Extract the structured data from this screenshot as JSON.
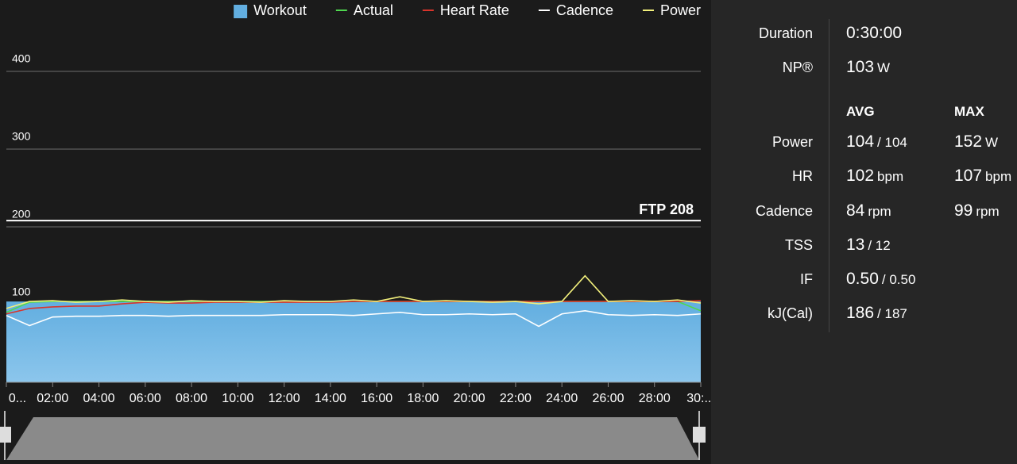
{
  "chart_data": {
    "type": "line",
    "x": [
      0,
      1,
      2,
      3,
      4,
      5,
      6,
      7,
      8,
      9,
      10,
      11,
      12,
      13,
      14,
      15,
      16,
      17,
      18,
      19,
      20,
      21,
      22,
      23,
      24,
      25,
      26,
      27,
      28,
      29,
      30
    ],
    "series": [
      {
        "name": "Workout",
        "color": "#62aee0",
        "style": "area",
        "values": [
          104,
          104,
          104,
          104,
          104,
          104,
          104,
          104,
          104,
          104,
          104,
          104,
          104,
          104,
          104,
          104,
          104,
          104,
          104,
          104,
          104,
          104,
          104,
          104,
          104,
          104,
          104,
          104,
          104,
          104,
          104
        ]
      },
      {
        "name": "Actual",
        "color": "#4fd84f",
        "style": "line",
        "values": [
          90,
          103,
          104,
          104,
          104,
          104,
          104,
          104,
          104,
          104,
          104,
          104,
          104,
          104,
          104,
          104,
          104,
          104,
          104,
          104,
          104,
          104,
          104,
          104,
          104,
          104,
          104,
          104,
          104,
          104,
          92
        ]
      },
      {
        "name": "Heart Rate",
        "color": "#d9342b",
        "style": "line",
        "values": [
          88,
          95,
          97,
          98,
          98,
          101,
          103,
          102,
          102,
          103,
          103,
          103,
          103,
          103,
          103,
          104,
          104,
          104,
          104,
          104,
          104,
          104,
          104,
          104,
          104,
          104,
          104,
          104,
          104,
          104,
          105
        ]
      },
      {
        "name": "Cadence",
        "color": "#ffffff",
        "style": "line",
        "values": [
          86,
          73,
          84,
          85,
          85,
          86,
          86,
          85,
          86,
          86,
          86,
          86,
          87,
          87,
          87,
          86,
          88,
          90,
          87,
          87,
          88,
          87,
          88,
          72,
          88,
          92,
          87,
          86,
          87,
          86,
          88
        ]
      },
      {
        "name": "Power",
        "color": "#f2f07c",
        "style": "line",
        "values": [
          95,
          104,
          105,
          103,
          104,
          106,
          104,
          103,
          105,
          104,
          104,
          103,
          105,
          104,
          104,
          106,
          104,
          110,
          104,
          105,
          104,
          103,
          104,
          101,
          104,
          137,
          104,
          105,
          104,
          106,
          102
        ]
      }
    ],
    "xlim": [
      0,
      30
    ],
    "xticks": [
      {
        "value": 0,
        "label": "0..."
      },
      {
        "value": 2,
        "label": "02:00"
      },
      {
        "value": 4,
        "label": "04:00"
      },
      {
        "value": 6,
        "label": "06:00"
      },
      {
        "value": 8,
        "label": "08:00"
      },
      {
        "value": 10,
        "label": "10:00"
      },
      {
        "value": 12,
        "label": "12:00"
      },
      {
        "value": 14,
        "label": "14:00"
      },
      {
        "value": 16,
        "label": "16:00"
      },
      {
        "value": 18,
        "label": "18:00"
      },
      {
        "value": 20,
        "label": "20:00"
      },
      {
        "value": 22,
        "label": "22:00"
      },
      {
        "value": 24,
        "label": "24:00"
      },
      {
        "value": 26,
        "label": "26:00"
      },
      {
        "value": 28,
        "label": "28:00"
      },
      {
        "value": 30,
        "label": "30:..."
      }
    ],
    "ylim": [
      0,
      450
    ],
    "yticks": [
      100,
      200,
      300,
      400
    ],
    "grid": true,
    "ftp": {
      "value": 208,
      "label": "FTP 208"
    }
  },
  "summary": {
    "duration": {
      "label": "Duration",
      "value": "0:30:00"
    },
    "np": {
      "label": "NP®",
      "value": "103",
      "unit": "W"
    },
    "headers": [
      "AVG",
      "MAX"
    ],
    "rows": [
      {
        "label": "Power",
        "avg": "104",
        "avg_unit": "/ 104",
        "max": "152",
        "max_unit": "W"
      },
      {
        "label": "HR",
        "avg": "102",
        "avg_unit": "bpm",
        "max": "107",
        "max_unit": "bpm"
      },
      {
        "label": "Cadence",
        "avg": "84",
        "avg_unit": "rpm",
        "max": "99",
        "max_unit": "rpm"
      },
      {
        "label": "TSS",
        "avg": "13",
        "avg_unit": "/ 12"
      },
      {
        "label": "IF",
        "avg": "0.50",
        "avg_unit": "/ 0.50"
      },
      {
        "label": "kJ(Cal)",
        "avg": "186",
        "avg_unit": "/ 187"
      }
    ]
  }
}
